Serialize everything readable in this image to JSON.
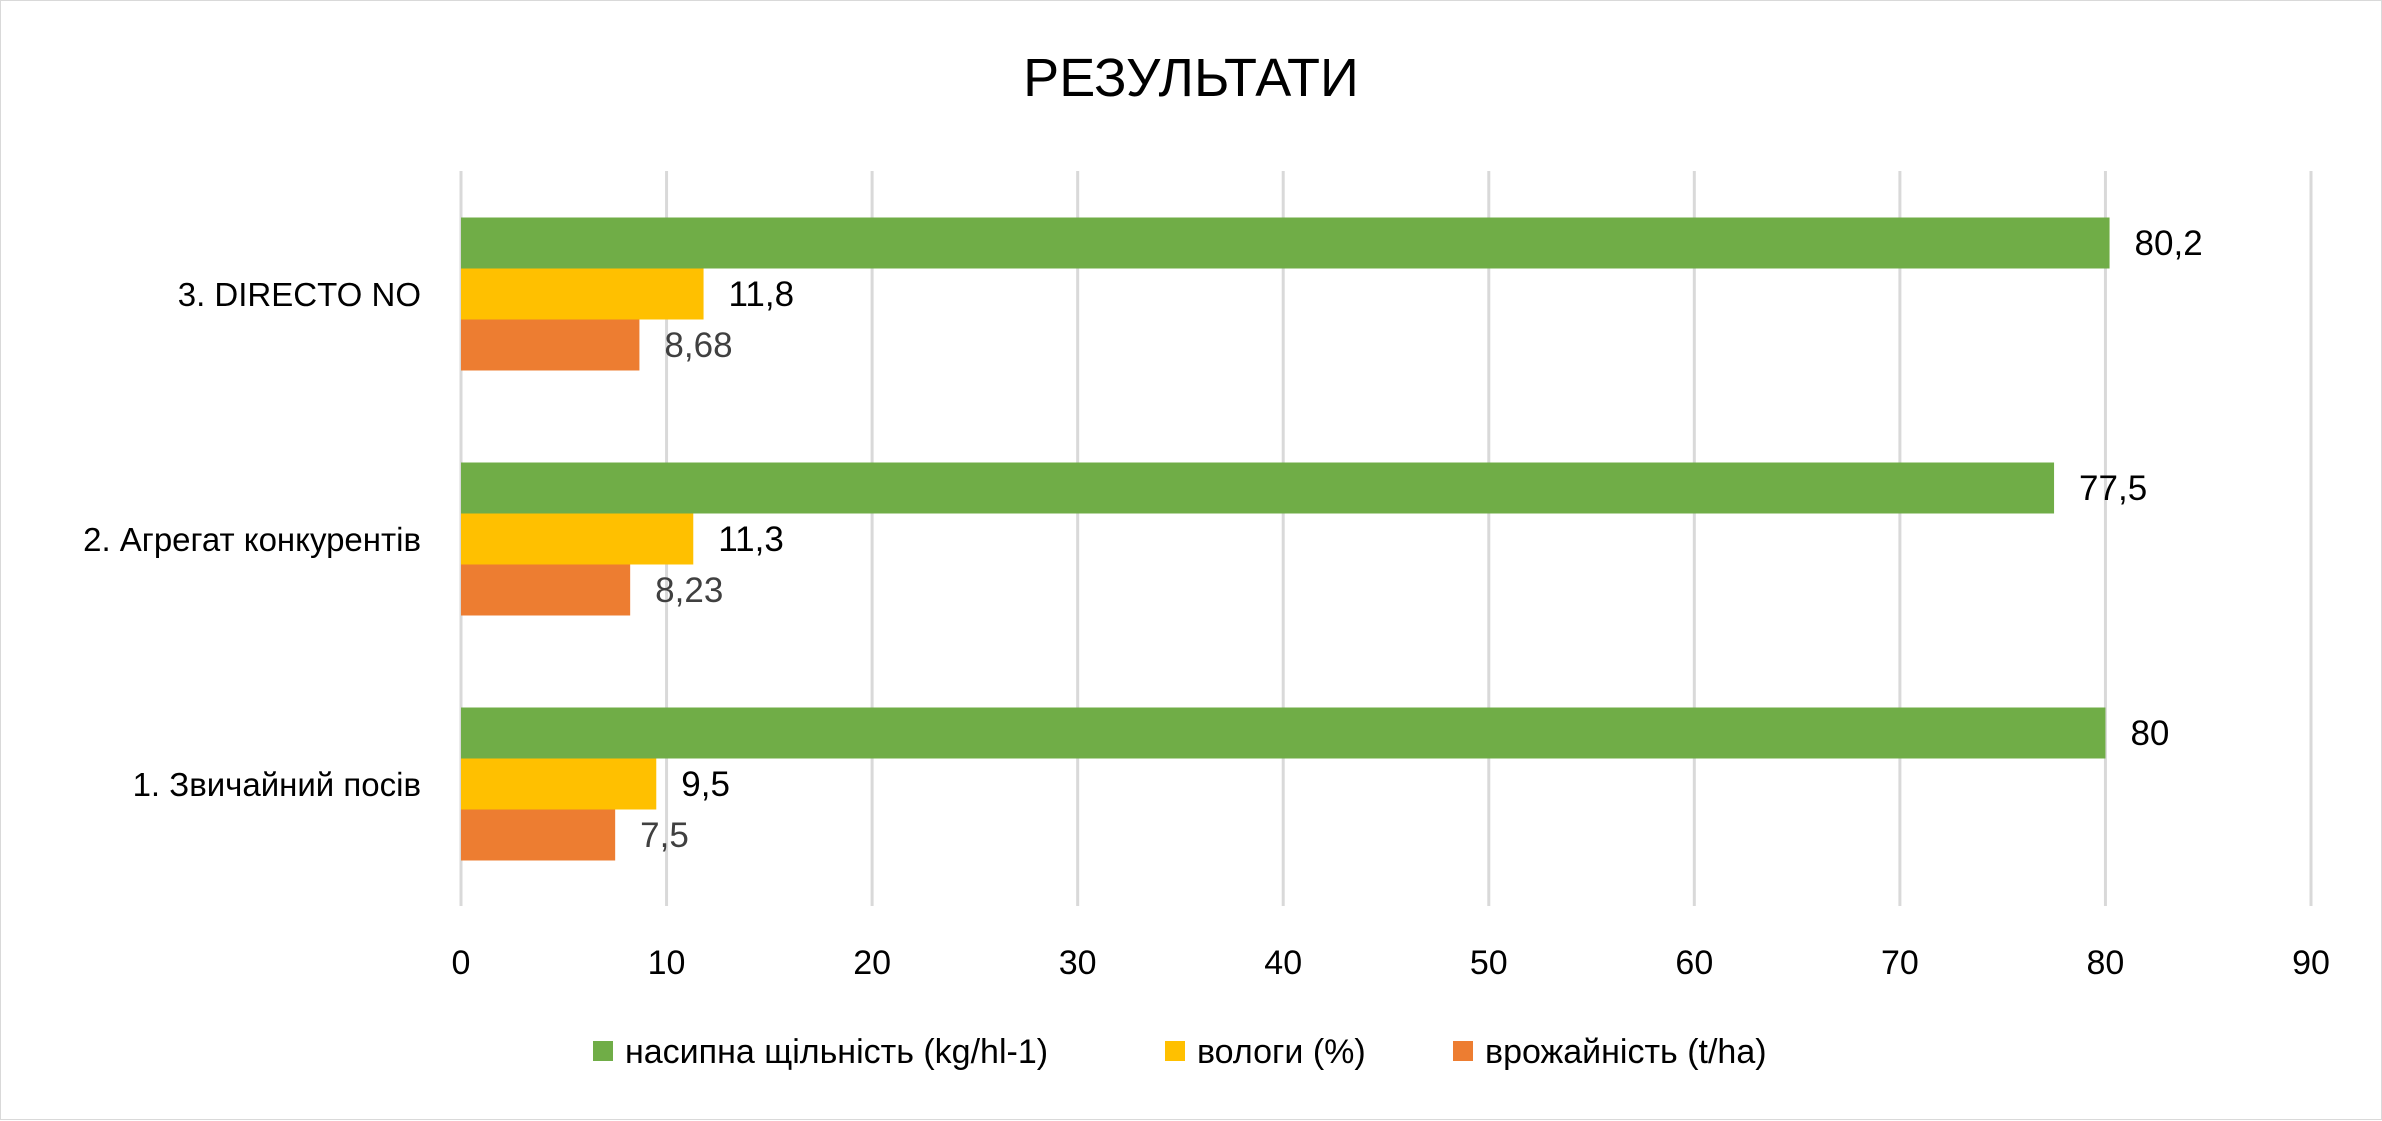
{
  "chart_data": {
    "type": "bar",
    "orientation": "horizontal",
    "title": "РЕЗУЛЬТАТИ",
    "categories": [
      "1. Звичайний посів",
      "2. Агрегат конкурентів",
      "3. DIRECTO NO"
    ],
    "series": [
      {
        "name": "насипна щільність (kg/hl-1)",
        "color": "#70AD47",
        "values": [
          80,
          77.5,
          80.2
        ],
        "labels": [
          "80",
          "77,5",
          "80,2"
        ],
        "label_color": "#000000"
      },
      {
        "name": "вологи (%)",
        "color": "#FFC000",
        "values": [
          9.5,
          11.3,
          11.8
        ],
        "labels": [
          "9,5",
          "11,3",
          "11,8"
        ],
        "label_color": "#000000"
      },
      {
        "name": "врожайність (t/ha)",
        "color": "#ED7D31",
        "values": [
          7.5,
          8.23,
          8.68
        ],
        "labels": [
          "7,5",
          "8,23",
          "8,68"
        ],
        "label_color": "#404040"
      }
    ],
    "xlim": [
      0,
      90
    ],
    "xticks": [
      0,
      10,
      20,
      30,
      40,
      50,
      60,
      70,
      80,
      90
    ],
    "xlabel": "",
    "ylabel": "",
    "grid": true,
    "legend_position": "bottom"
  }
}
